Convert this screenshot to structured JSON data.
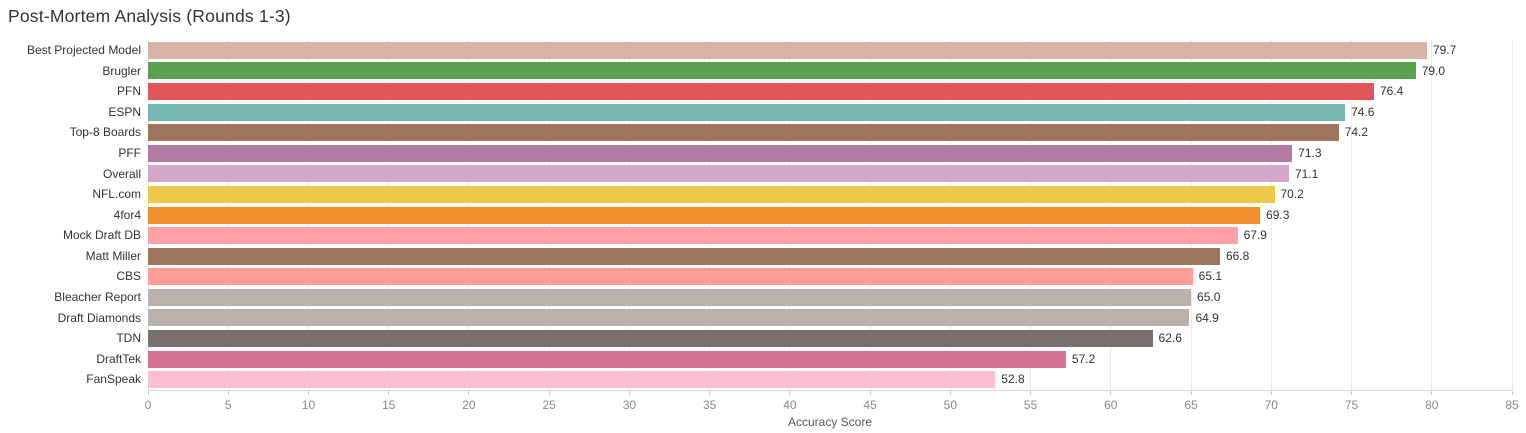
{
  "title": "Post-Mortem Analysis (Rounds 1-3)",
  "chart_data": {
    "type": "bar",
    "orientation": "horizontal",
    "title": "Post-Mortem Analysis (Rounds 1-3)",
    "xlabel": "Accuracy Score",
    "ylabel": "",
    "xlim": [
      0,
      85
    ],
    "xticks": [
      0,
      5,
      10,
      15,
      20,
      25,
      30,
      35,
      40,
      45,
      50,
      55,
      60,
      65,
      70,
      75,
      80,
      85
    ],
    "grid": true,
    "legend": false,
    "categories": [
      "Best Projected Model",
      "Brugler",
      "PFN",
      "ESPN",
      "Top-8 Boards",
      "PFF",
      "Overall",
      "NFL.com",
      "4for4",
      "Mock Draft DB",
      "Matt Miller",
      "CBS",
      "Bleacher Report",
      "Draft Diamonds",
      "TDN",
      "DraftTek",
      "FanSpeak"
    ],
    "values": [
      79.7,
      79.0,
      76.4,
      74.6,
      74.2,
      71.3,
      71.1,
      70.2,
      69.3,
      67.9,
      66.8,
      65.1,
      65.0,
      64.9,
      62.6,
      57.2,
      52.8
    ],
    "value_labels": [
      "79.7",
      "79.0",
      "76.4",
      "74.6",
      "74.2",
      "71.3",
      "71.1",
      "70.2",
      "69.3",
      "67.9",
      "66.8",
      "65.1",
      "65.0",
      "64.9",
      "62.6",
      "57.2",
      "52.8"
    ],
    "bar_colors": [
      "#d7b5a6",
      "#59a14f",
      "#e15759",
      "#76b7b2",
      "#9d7660",
      "#b07aa1",
      "#d4a6c8",
      "#edc948",
      "#f28e2b",
      "#ff9fa6",
      "#9d7660",
      "#ff9d96",
      "#bab0ac",
      "#bab0ac",
      "#79706e",
      "#d37295",
      "#fabfd2"
    ]
  },
  "colors": {
    "background": "#ffffff",
    "title_text": "#343434",
    "category_text": "#333333",
    "value_text": "#333333",
    "tick_text": "#8a8a8a",
    "axis_title_text": "#575757",
    "gridline": "#ebebeb",
    "axis_line": "#d9d9d9",
    "tick_mark": "#c9c9c9"
  }
}
